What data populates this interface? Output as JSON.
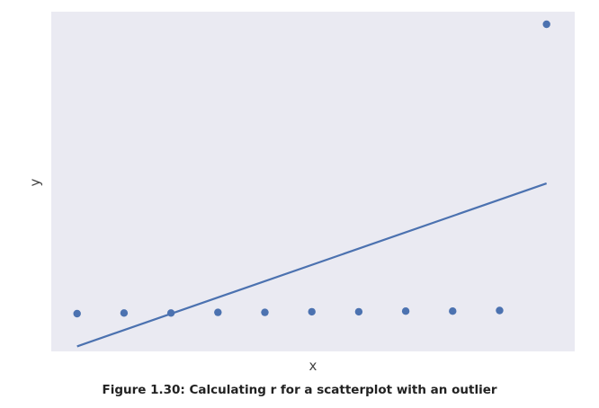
{
  "caption": "Figure 1.30: Calculating r for a scatterplot with an outlier",
  "chart_data": {
    "type": "scatter",
    "title": "",
    "xlabel": "x",
    "ylabel": "y",
    "xlim": [
      0.45,
      11.6
    ],
    "ylim": [
      -0.2,
      5.2
    ],
    "grid": false,
    "background": "#EAEAF2",
    "color": "#4C72B0",
    "points": [
      {
        "x": 1,
        "y": 0.4
      },
      {
        "x": 2,
        "y": 0.41
      },
      {
        "x": 3,
        "y": 0.41
      },
      {
        "x": 4,
        "y": 0.42
      },
      {
        "x": 5,
        "y": 0.42
      },
      {
        "x": 6,
        "y": 0.43
      },
      {
        "x": 7,
        "y": 0.43
      },
      {
        "x": 8,
        "y": 0.44
      },
      {
        "x": 9,
        "y": 0.44
      },
      {
        "x": 10,
        "y": 0.45
      },
      {
        "x": 11,
        "y": 5.0
      }
    ],
    "fit_line": {
      "x": [
        1,
        11
      ],
      "y": [
        -0.12,
        2.47
      ]
    }
  }
}
